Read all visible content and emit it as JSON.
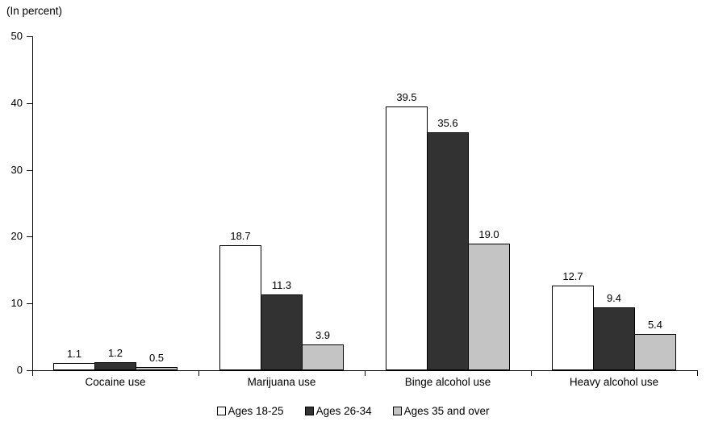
{
  "chart_data": {
    "type": "bar",
    "title": "(In percent)",
    "ylabel": "(In percent)",
    "xlabel": "",
    "ylim": [
      0,
      50
    ],
    "yticks": [
      0,
      10,
      20,
      30,
      40,
      50
    ],
    "grid": false,
    "legend_position": "bottom",
    "categories": [
      "Cocaine use",
      "Marijuana use",
      "Binge alcohol use",
      "Heavy alcohol use"
    ],
    "series": [
      {
        "name": "Ages 18-25",
        "values": [
          1.1,
          18.7,
          39.5,
          12.7
        ],
        "fill": "#ffffff",
        "border": "#000000"
      },
      {
        "name": "Ages 26-34",
        "values": [
          1.2,
          11.3,
          35.6,
          9.4
        ],
        "fill": "#323232",
        "border": "#000000"
      },
      {
        "name": "Ages 35 and over",
        "values": [
          0.5,
          3.9,
          19.0,
          5.4
        ],
        "fill": "#c4c4c4",
        "border": "#000000"
      }
    ],
    "value_label_decimals": 1,
    "colors": {
      "axis": "#000000",
      "text": "#000000",
      "background": "#ffffff"
    }
  }
}
